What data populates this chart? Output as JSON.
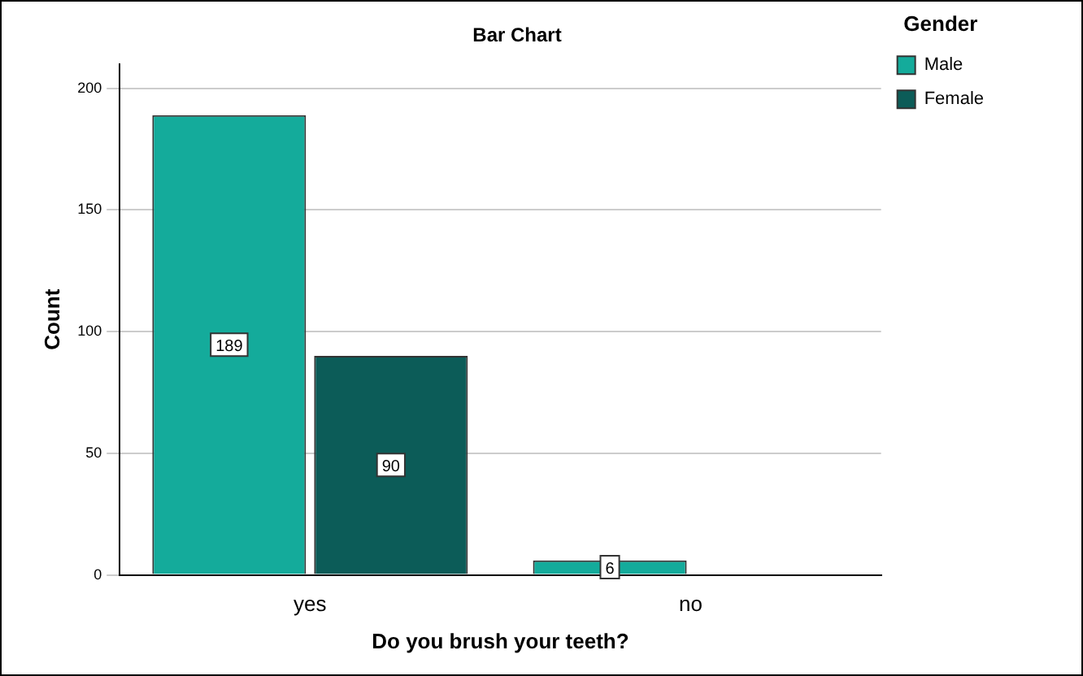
{
  "chart_data": {
    "type": "bar",
    "title": "Bar Chart",
    "xlabel": "Do you brush your teeth?",
    "ylabel": "Count",
    "legend_title": "Gender",
    "categories": [
      "yes",
      "no"
    ],
    "series": [
      {
        "name": "Male",
        "color": "#14ab9b",
        "values": [
          189,
          6
        ]
      },
      {
        "name": "Female",
        "color": "#0c5c58",
        "values": [
          90,
          null
        ]
      }
    ],
    "ylim": [
      0,
      210
    ],
    "yticks": [
      0,
      50,
      100,
      150,
      200
    ],
    "grid": "y",
    "legend": "top right",
    "data_labels": true
  }
}
